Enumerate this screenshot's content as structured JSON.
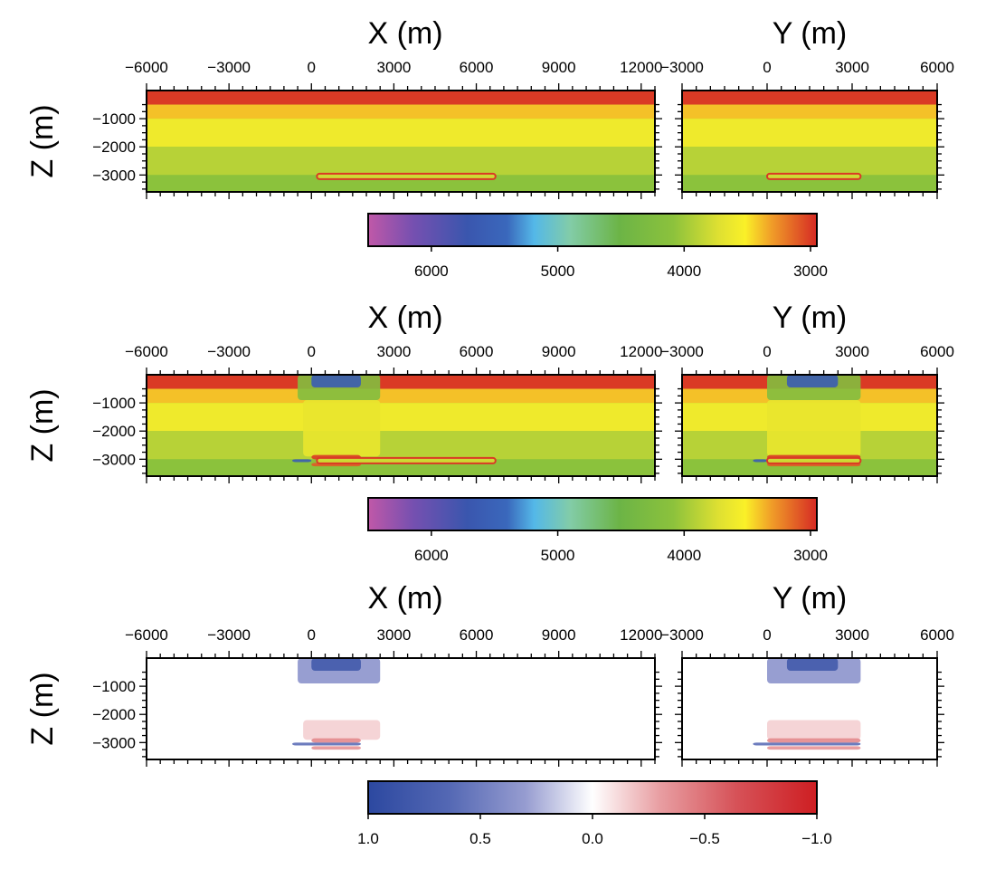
{
  "chart_data": [
    {
      "type": "heatmap",
      "title": "",
      "panels": [
        {
          "xlabel": "X (m)",
          "ylabel": "Z (m)",
          "xticks": [
            -6000,
            -3000,
            0,
            3000,
            6000,
            9000,
            12000
          ],
          "yticks": [
            -1000,
            -2000,
            -3000
          ],
          "xlim": [
            -6000,
            12500
          ],
          "ylim": [
            -3600,
            0
          ]
        },
        {
          "xlabel": "Y (m)",
          "ylabel": "",
          "xticks": [
            -3000,
            0,
            3000,
            6000
          ],
          "yticks": [],
          "xlim": [
            -3000,
            6000
          ],
          "ylim": [
            -3600,
            0
          ]
        }
      ],
      "layers": [
        {
          "z_top": 0,
          "z_bottom": -500,
          "value": 3000
        },
        {
          "z_top": -500,
          "z_bottom": -1000,
          "value": 3400
        },
        {
          "z_top": -1000,
          "z_bottom": -2000,
          "value": 3600
        },
        {
          "z_top": -2000,
          "z_bottom": -3000,
          "value": 3900
        },
        {
          "z_top": -3000,
          "z_bottom": -3600,
          "value": 4100
        }
      ],
      "reservoir": {
        "z": -3050,
        "x_range": [
          200,
          6700
        ],
        "y_range": [
          0,
          3300
        ],
        "value": 3000
      },
      "anomalies": [],
      "colorbar": {
        "ticks": [
          "6000",
          "5000",
          "4000",
          "3000"
        ],
        "vmin": 2950,
        "vmax": 6500,
        "reversed": true,
        "colormap": "rainbow"
      }
    },
    {
      "type": "heatmap",
      "title": "",
      "panels": [
        {
          "xlabel": "X (m)",
          "ylabel": "Z (m)",
          "xticks": [
            -6000,
            -3000,
            0,
            3000,
            6000,
            9000,
            12000
          ],
          "yticks": [
            -1000,
            -2000,
            -3000
          ],
          "xlim": [
            -6000,
            12500
          ],
          "ylim": [
            -3600,
            0
          ]
        },
        {
          "xlabel": "Y (m)",
          "ylabel": "",
          "xticks": [
            -3000,
            0,
            3000,
            6000
          ],
          "yticks": [],
          "xlim": [
            -3000,
            6000
          ],
          "ylim": [
            -3600,
            0
          ]
        }
      ],
      "layers": [
        {
          "z_top": 0,
          "z_bottom": -500,
          "value": 3000
        },
        {
          "z_top": -500,
          "z_bottom": -1000,
          "value": 3400
        },
        {
          "z_top": -1000,
          "z_bottom": -2000,
          "value": 3600
        },
        {
          "z_top": -2000,
          "z_bottom": -3000,
          "value": 3900
        },
        {
          "z_top": -3000,
          "z_bottom": -3600,
          "value": 4100
        }
      ],
      "reservoir": {
        "z": -3050,
        "x_range": [
          200,
          6700
        ],
        "y_range": [
          0,
          3300
        ],
        "value": 3000
      },
      "anomalies": [
        {
          "x_range": [
            -500,
            2500
          ],
          "y_range": [
            0,
            3300
          ],
          "z_range": [
            -900,
            0
          ],
          "value": 4200
        },
        {
          "x_range": [
            0,
            1800
          ],
          "y_range": [
            700,
            2500
          ],
          "z_range": [
            -450,
            0
          ],
          "value": 5600
        },
        {
          "x_range": [
            -300,
            2500
          ],
          "y_range": [
            0,
            3300
          ],
          "z_range": [
            -2900,
            -900
          ],
          "value": 3650
        },
        {
          "x_range": [
            0,
            1800
          ],
          "y_range": [
            0,
            3300
          ],
          "z_range": [
            -3000,
            -2850
          ],
          "value": 3000
        },
        {
          "x_range": [
            0,
            1800
          ],
          "y_range": [
            0,
            3300
          ],
          "z_range": [
            -3250,
            -3130
          ],
          "value": 3100
        },
        {
          "x_range": [
            -700,
            0
          ],
          "y_range": [
            -500,
            0
          ],
          "z_range": [
            -3100,
            -3000
          ],
          "value": 5600
        }
      ],
      "colorbar": {
        "ticks": [
          "6000",
          "5000",
          "4000",
          "3000"
        ],
        "vmin": 2950,
        "vmax": 6500,
        "reversed": true,
        "colormap": "rainbow"
      }
    },
    {
      "type": "heatmap",
      "title": "",
      "panels": [
        {
          "xlabel": "X (m)",
          "ylabel": "Z (m)",
          "xticks": [
            -6000,
            -3000,
            0,
            3000,
            6000,
            9000,
            12000
          ],
          "yticks": [
            -1000,
            -2000,
            -3000
          ],
          "xlim": [
            -6000,
            12500
          ],
          "ylim": [
            -3600,
            0
          ]
        },
        {
          "xlabel": "Y (m)",
          "ylabel": "",
          "xticks": [
            -3000,
            0,
            3000,
            6000
          ],
          "yticks": [],
          "xlim": [
            -3000,
            6000
          ],
          "ylim": [
            -3600,
            0
          ]
        }
      ],
      "layers": [],
      "reservoir": null,
      "anomalies": [
        {
          "x_range": [
            -500,
            2500
          ],
          "y_range": [
            0,
            3300
          ],
          "z_range": [
            -900,
            0
          ],
          "value": 0.35
        },
        {
          "x_range": [
            0,
            1800
          ],
          "y_range": [
            700,
            2500
          ],
          "z_range": [
            -450,
            0
          ],
          "value": 0.8
        },
        {
          "x_range": [
            -300,
            2500
          ],
          "y_range": [
            0,
            3300
          ],
          "z_range": [
            -2900,
            -2200
          ],
          "value": -0.15
        },
        {
          "x_range": [
            0,
            1800
          ],
          "y_range": [
            0,
            3300
          ],
          "z_range": [
            -3000,
            -2850
          ],
          "value": -0.4
        },
        {
          "x_range": [
            0,
            1800
          ],
          "y_range": [
            0,
            3300
          ],
          "z_range": [
            -3250,
            -3130
          ],
          "value": -0.35
        },
        {
          "x_range": [
            -700,
            1800
          ],
          "y_range": [
            -500,
            3300
          ],
          "z_range": [
            -3100,
            -3000
          ],
          "value": 0.6
        }
      ],
      "colorbar": {
        "ticks": [
          "1.0",
          "0.5",
          "0.0",
          "−0.5",
          "−1.0"
        ],
        "vmin": -1.0,
        "vmax": 1.0,
        "reversed": true,
        "colormap": "blue-white-red"
      }
    }
  ]
}
